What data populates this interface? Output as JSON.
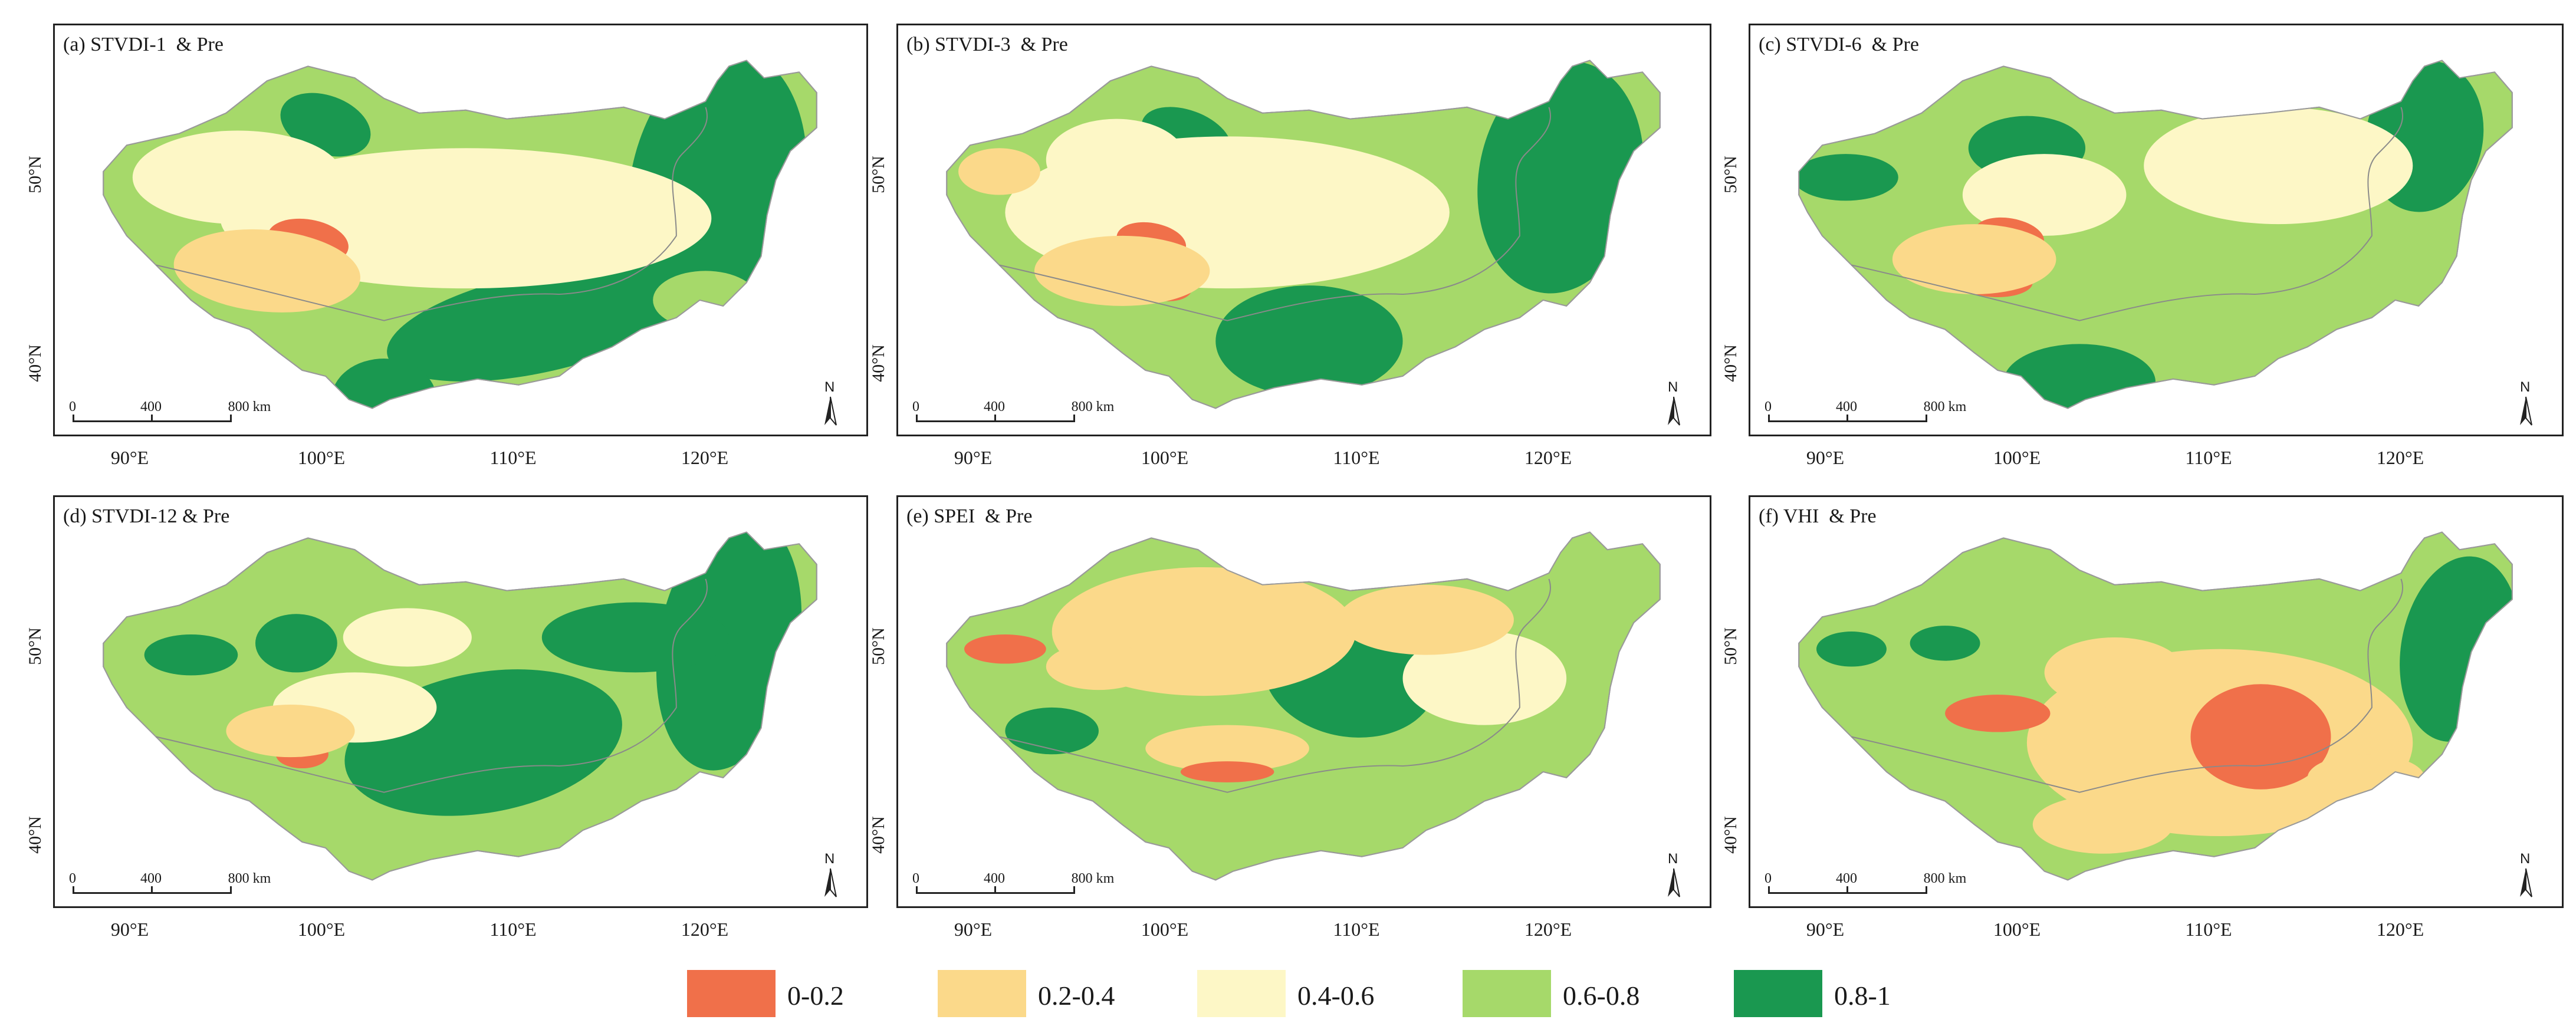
{
  "figure": {
    "panels": [
      {
        "title": "(a) STVDI-1  & Pre"
      },
      {
        "title": "(b) STVDI-3  & Pre"
      },
      {
        "title": "(c) STVDI-6  & Pre"
      },
      {
        "title": "(d) STVDI-12 & Pre"
      },
      {
        "title": "(e) SPEI  & Pre"
      },
      {
        "title": "(f) VHI  & Pre"
      }
    ],
    "lat_labels": [
      "50°N",
      "40°N"
    ],
    "lon_labels": [
      "90°E",
      "100°E",
      "110°E",
      "120°E"
    ],
    "scale": {
      "ticks": [
        "0",
        "400",
        "800 km"
      ]
    },
    "north_letter": "N",
    "legend": [
      {
        "label": "0-0.2",
        "color": "#f0704a"
      },
      {
        "label": "0.2-0.4",
        "color": "#fbd98a"
      },
      {
        "label": "0.4-0.6",
        "color": "#fdf7c6"
      },
      {
        "label": "0.6-0.8",
        "color": "#a6d96a"
      },
      {
        "label": "0.8-1",
        "color": "#1a9850"
      }
    ]
  }
}
